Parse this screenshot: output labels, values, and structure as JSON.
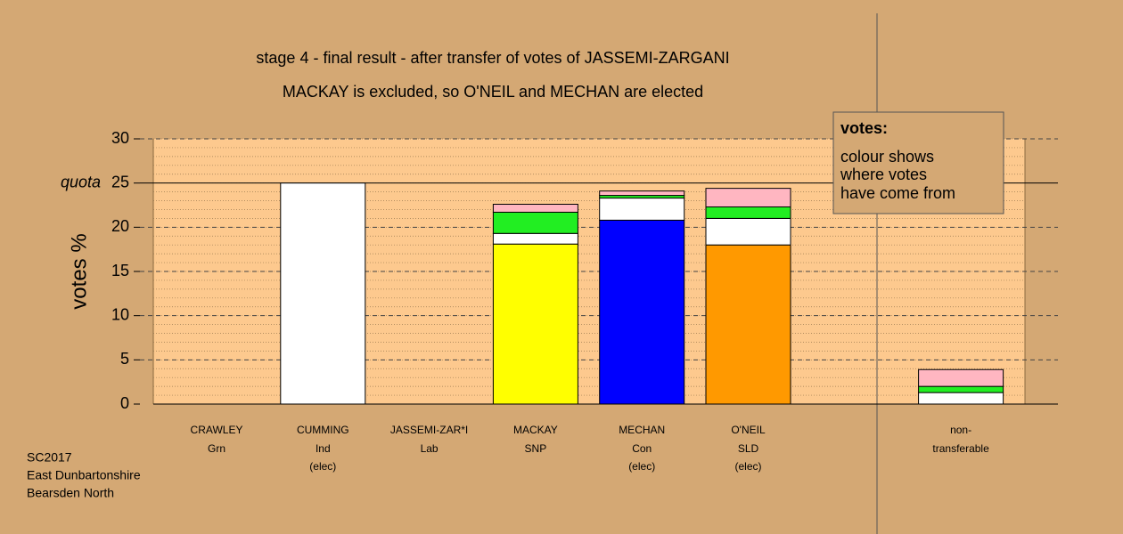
{
  "chart_data": {
    "type": "stacked-bar",
    "title": "stage 4 - final result - after transfer of votes of JASSEMI-ZARGANI",
    "subtitle": "MACKAY is excluded, so O'NEIL and MECHAN are elected",
    "y_label": "votes %",
    "categories": [
      "CRAWLEY",
      "CUMMING",
      "JASSEMI-ZAR*I",
      "MACKAY",
      "MECHAN",
      "O'NEIL",
      "non-"
    ],
    "parties": [
      "Grn",
      "Ind",
      "Lab",
      "SNP",
      "Con",
      "SLD",
      "transferable"
    ],
    "status": [
      null,
      "(elec)",
      null,
      null,
      "(elec)",
      "(elec)",
      null
    ],
    "series": [
      {
        "colors": [
          "#00aa00",
          "#ffffff",
          "#ff0000",
          "#ffff00",
          "#0000ff",
          "#ff9900",
          null
        ],
        "values": [
          0,
          25,
          0,
          18.1,
          20.8,
          18.0,
          null
        ]
      },
      {
        "color": "#ffffff",
        "values": [
          null,
          null,
          null,
          1.2,
          2.5,
          3.0,
          1.3
        ]
      },
      {
        "color": "#22ee22",
        "values": [
          null,
          null,
          null,
          2.4,
          0.3,
          1.3,
          0.7
        ]
      },
      {
        "color": "#ffb6c1",
        "values": [
          null,
          null,
          null,
          0.9,
          0.5,
          2.1,
          1.9
        ]
      }
    ],
    "ylim": [
      0,
      30
    ],
    "yticks": [
      0,
      5,
      10,
      15,
      20,
      25,
      30
    ],
    "grid": true,
    "quota": {
      "value": 25,
      "label": "quota"
    },
    "legend_box": {
      "title": "votes:",
      "lines": [
        "colour shows",
        "where votes",
        "have come from"
      ]
    },
    "footer": [
      "SC2017",
      "East Dunbartonshire",
      "Bearsden North"
    ]
  }
}
